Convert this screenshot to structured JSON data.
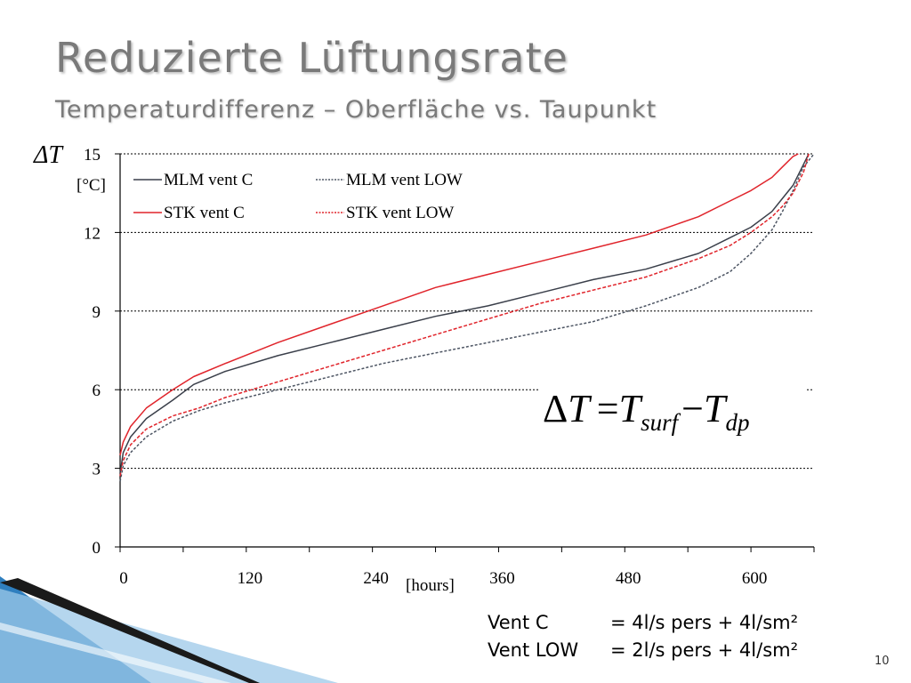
{
  "slide": {
    "title": "Reduzierte Lüftungsrate",
    "subtitle": "Temperaturdifferenz – Oberfläche vs. Taupunkt",
    "page_number": "10",
    "notes": [
      {
        "label": "Vent C",
        "value": "= 4l/s pers + 4l/sm²"
      },
      {
        "label": "Vent LOW",
        "value": "= 2l/s pers + 4l/sm²"
      }
    ],
    "formula": {
      "delta": "Δ",
      "T": "T",
      "eq": "=",
      "sub1": "surf",
      "minus": "−",
      "sub2": "dp"
    },
    "colors": {
      "title": "#7a7a7a",
      "accent_blue": "#2f7fbf",
      "accent_light": "#9cc8e8"
    }
  },
  "chart_data": {
    "type": "line",
    "ylabel": "ΔT",
    "ylabel_unit": "[°C]",
    "xlabel": "[hours]",
    "xlim": [
      0,
      660
    ],
    "ylim": [
      0,
      15
    ],
    "x_ticks": [
      "0",
      "120",
      "240",
      "360",
      "480",
      "600"
    ],
    "y_ticks": [
      "0",
      "3",
      "6",
      "9",
      "12",
      "15"
    ],
    "grid": "horizontal dashed",
    "legend_placement": "top-left",
    "series": [
      {
        "name": "MLM vent C",
        "color": "#3a3f4a",
        "dash": "",
        "x": [
          0,
          3,
          10,
          25,
          50,
          70,
          100,
          150,
          200,
          250,
          300,
          350,
          400,
          450,
          500,
          550,
          580,
          600,
          620,
          630,
          640,
          650,
          655
        ],
        "y": [
          2.8,
          3.6,
          4.2,
          4.9,
          5.6,
          6.2,
          6.7,
          7.3,
          7.8,
          8.3,
          8.8,
          9.2,
          9.7,
          10.2,
          10.6,
          11.2,
          11.8,
          12.2,
          12.8,
          13.3,
          13.8,
          14.6,
          15
        ]
      },
      {
        "name": "MLM vent LOW",
        "color": "#4d5563",
        "dash": "3,2",
        "x": [
          0,
          3,
          10,
          25,
          50,
          75,
          100,
          150,
          200,
          250,
          300,
          350,
          400,
          450,
          500,
          550,
          580,
          600,
          620,
          630,
          640,
          650,
          660
        ],
        "y": [
          2.5,
          3.1,
          3.6,
          4.2,
          4.8,
          5.2,
          5.5,
          6.0,
          6.5,
          7.0,
          7.4,
          7.8,
          8.2,
          8.6,
          9.2,
          9.9,
          10.5,
          11.2,
          12.1,
          12.8,
          13.6,
          14.5,
          15
        ]
      },
      {
        "name": "STK vent C",
        "color": "#e0242b",
        "dash": "",
        "x": [
          0,
          3,
          10,
          25,
          50,
          70,
          100,
          150,
          200,
          250,
          300,
          350,
          400,
          450,
          500,
          550,
          580,
          600,
          620,
          630,
          640,
          645
        ],
        "y": [
          3.5,
          4.0,
          4.6,
          5.3,
          6.0,
          6.5,
          7.0,
          7.8,
          8.5,
          9.2,
          9.9,
          10.4,
          10.9,
          11.4,
          11.9,
          12.6,
          13.2,
          13.6,
          14.1,
          14.5,
          14.9,
          15
        ]
      },
      {
        "name": "STK vent LOW",
        "color": "#e0242b",
        "dash": "4,2",
        "x": [
          0,
          3,
          10,
          25,
          50,
          75,
          100,
          150,
          200,
          250,
          300,
          350,
          400,
          450,
          500,
          550,
          580,
          600,
          620,
          630,
          640,
          650,
          655
        ],
        "y": [
          2.7,
          3.3,
          3.9,
          4.5,
          5.0,
          5.3,
          5.7,
          6.3,
          6.9,
          7.5,
          8.1,
          8.7,
          9.3,
          9.8,
          10.3,
          11.0,
          11.5,
          12.0,
          12.6,
          13.0,
          13.5,
          14.3,
          15
        ]
      }
    ]
  }
}
